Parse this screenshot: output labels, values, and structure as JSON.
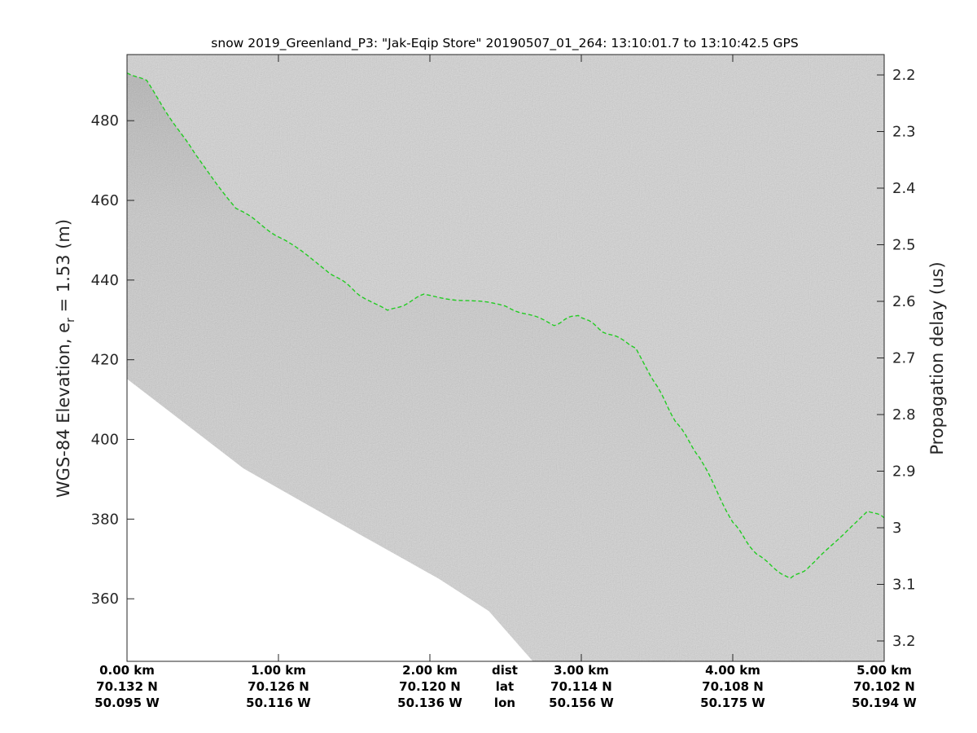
{
  "chart_data": {
    "type": "line",
    "title": "snow 2019_Greenland_P3: \"Jak-Eqip Store\"  20190507_01_264: 13:10:01.7 to 13:10:42.5 GPS",
    "ylabel_left": "WGS-84 Elevation, e",
    "ylabel_left_sub": "r",
    "ylabel_left_tail": " = 1.53 (m)",
    "ylabel_right": "Propagation delay (us)",
    "xlim_km": [
      0,
      5
    ],
    "ylim_left": [
      344.3,
      496.6
    ],
    "ylim_right": [
      2.164,
      3.236
    ],
    "yticks_left": [
      "360",
      "380",
      "400",
      "420",
      "440",
      "460",
      "480"
    ],
    "yticks_left_values": [
      360,
      380,
      400,
      420,
      440,
      460,
      480
    ],
    "yticks_right": [
      "2.2",
      "2.3",
      "2.4",
      "2.5",
      "2.6",
      "2.7",
      "2.8",
      "2.9",
      "3",
      "3.1",
      "3.2"
    ],
    "yticks_right_values": [
      2.2,
      2.3,
      2.4,
      2.5,
      2.6,
      2.7,
      2.8,
      2.9,
      3.0,
      3.1,
      3.2
    ],
    "x_labels": [
      {
        "km": 0,
        "dist": "0.00 km",
        "lat": "70.132 N",
        "lon": "50.095 W"
      },
      {
        "km": 1,
        "dist": "1.00 km",
        "lat": "70.126 N",
        "lon": "50.116 W"
      },
      {
        "km": 2,
        "dist": "2.00 km",
        "lat": "70.120 N",
        "lon": "50.136 W"
      },
      {
        "km": 3,
        "dist": "3.00 km",
        "lat": "70.114 N",
        "lon": "50.156 W"
      },
      {
        "km": 4,
        "dist": "4.00 km",
        "lat": "70.108 N",
        "lon": "50.175 W"
      },
      {
        "km": 5,
        "dist": "5.00 km",
        "lat": "70.102 N",
        "lon": "50.194 W"
      }
    ],
    "row_labels": {
      "dist": "dist",
      "lat": "lat",
      "lon": "lon"
    },
    "series": [
      {
        "name": "surface",
        "color": "#22cc22",
        "x_km": [
          0,
          0.13,
          0.45,
          0.72,
          1.04,
          1.31,
          1.53,
          1.72,
          1.96,
          2.23,
          2.5,
          2.82,
          2.98,
          3.14,
          3.36,
          3.46,
          3.62,
          3.78,
          4.0,
          4.16,
          4.38,
          4.54,
          4.75,
          4.89,
          5.0
        ],
        "elevation_m": [
          492.3,
          489.8,
          471.4,
          458.1,
          450.0,
          442.8,
          436.6,
          432.1,
          436.2,
          435.0,
          433.5,
          428.8,
          431.4,
          427.3,
          423.2,
          416.0,
          404.8,
          395.6,
          379.2,
          371.0,
          364.9,
          369.0,
          377.2,
          382.3,
          380.3
        ]
      },
      {
        "name": "data-extent",
        "x_km": [
          0,
          0.77,
          1.53,
          2.06,
          2.39,
          2.68
        ],
        "elevation_m": [
          415.2,
          392.7,
          376.3,
          365.0,
          356.9,
          344.3
        ]
      }
    ],
    "colormap": "gray",
    "background_echo": "#c6c6c6"
  }
}
